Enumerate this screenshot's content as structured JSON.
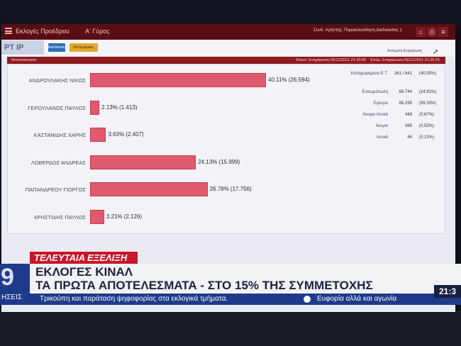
{
  "titlebar": {
    "title": "Εκλογές Προέδρου",
    "round": "Α' Γύρος",
    "user": "Συνδ. Χρήστης: Παρακολούθηση Διαδικασίας 1",
    "btn_home": "⌂",
    "btn_print": "⎙",
    "btn_menu": "≡"
  },
  "toolbar": {
    "logo": "PT IP",
    "print_label": "Εκτύπωση",
    "detail_label": "Λεπτομέρειες",
    "auto_refresh": "Αυτόματη Ενημέρωση"
  },
  "results_bar": {
    "label": "Αποτελέσματα",
    "last_update": "Τελευτ. Ενημέρωση 05/12/2021 21:30:00",
    "next_update": "Επόμ. Ενημέρωση 05/12/2021 21:35:15"
  },
  "candidates": [
    {
      "name": "ΑΝΔΡΟΥΛΑΚΗΣ ΝΙΚΟΣ",
      "pct": 40.11,
      "label": "40.11% (26.594)"
    },
    {
      "name": "ΓΕΡΟΥΛΑΝΟΣ ΠΑΥΛΟΣ",
      "pct": 2.13,
      "label": "2.13% (1.413)"
    },
    {
      "name": "ΚΑΣΤΑΝΙΔΗΣ ΧΑΡΗΣ",
      "pct": 3.63,
      "label": "3.63% (2.407)"
    },
    {
      "name": "ΛΟΒΕΡΔΟΣ ΑΝΔΡΕΑΣ",
      "pct": 24.13,
      "label": "24.13% (15.999)"
    },
    {
      "name": "ΠΑΠΑΝΔΡΕΟΥ ΓΙΩΡΓΟΣ",
      "pct": 26.78,
      "label": "26.78% (17.756)"
    },
    {
      "name": "ΧΡΗΣΤΙΔΗΣ ΠΑΥΛΟΣ",
      "pct": 3.21,
      "label": "3.21% (2.126)"
    }
  ],
  "stats": {
    "counted_label": "Καταχωρημένα Ε.Τ.",
    "counted_val": "341 / 841",
    "counted_pct": "(40,55%)",
    "voted_label": "Ενσωμάτωση",
    "voted_val": "66.744",
    "voted_pct": "(24,91%)",
    "valid_label": "Έγκυρα",
    "valid_val": "66.295",
    "valid_pct": "(99,33%)",
    "invalid_blank_label": "Άκυρα-Λευκά",
    "invalid_blank_val": "449",
    "invalid_blank_pct": "(0,67%)",
    "invalid_label": "Άκυρα",
    "invalid_val": "365",
    "invalid_pct": "(0,55%)",
    "blank_label": "Λευκά",
    "blank_val": "84",
    "blank_pct": "(0,13%)"
  },
  "news": {
    "label": "ΤΕΛΕΥΤΑΙΑ ΕΞΕΛΙΞΗ",
    "line1": "ΕΚΛΟΓΕΣ ΚΙΝΑΛ",
    "line2": "ΤΑ ΠΡΩΤΑ ΑΠΟΤΕΛΕΣΜΑΤΑ - ΣΤΟ 15% ΤΗΣ ΣΥΜΜΕΤΟΧΗΣ",
    "ticker_a": "Τρικούπη και παράταση ψηφοφορίας στα εκλογικά τμήματα.",
    "ticker_b": "Ευφορία αλλά και αγωνία",
    "clock": "21:3",
    "channel_num": "9",
    "channel_word": "ΗΣΕΙΣ"
  }
}
